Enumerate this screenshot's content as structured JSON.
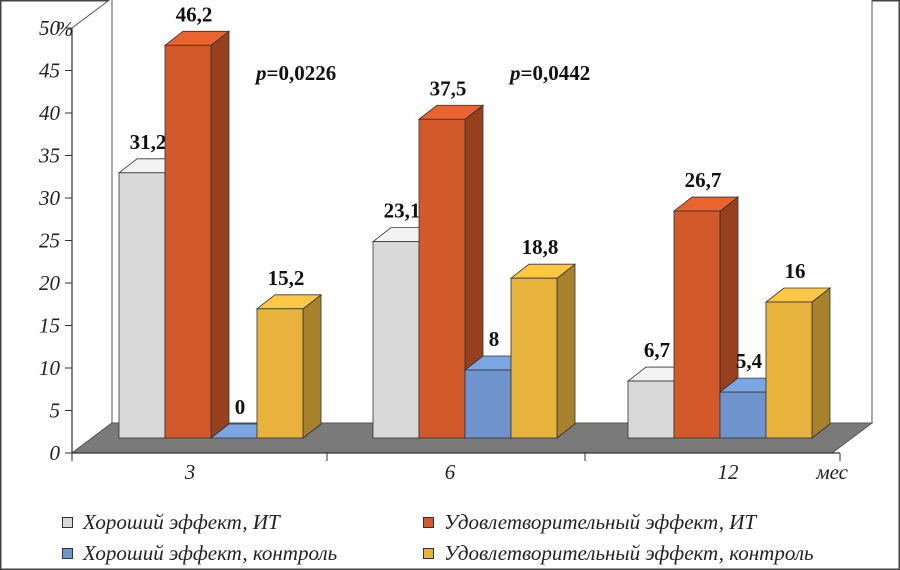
{
  "chart_data": {
    "type": "bar",
    "title": "",
    "xlabel": "мес",
    "ylabel": "%",
    "ylim": [
      0,
      50
    ],
    "yticks": [
      0,
      5,
      10,
      15,
      20,
      25,
      30,
      35,
      40,
      45,
      50
    ],
    "categories": [
      "3",
      "6",
      "12"
    ],
    "series": [
      {
        "name": "Хороший эффект, ИТ",
        "values": [
          31.2,
          23.1,
          6.7
        ],
        "labels": [
          "31,2",
          "23,1",
          "6,7"
        ],
        "color": "#d9d9d9"
      },
      {
        "name": "Удовлетворительный эффект, ИТ",
        "values": [
          46.2,
          37.5,
          26.7
        ],
        "labels": [
          "46,2",
          "37,5",
          "26,7"
        ],
        "color": "#d2592a"
      },
      {
        "name": "Хороший эффект, контроль",
        "values": [
          0,
          8,
          5.4
        ],
        "labels": [
          "0",
          "8",
          "5,4"
        ],
        "color": "#6f93cc"
      },
      {
        "name": "Удовлетворительный эффект, контроль",
        "values": [
          15.2,
          18.8,
          16
        ],
        "labels": [
          "15,2",
          "18,8",
          "16"
        ],
        "color": "#e8b33d"
      }
    ],
    "annotations": [
      {
        "letter": "p",
        "text": "=0,0226"
      },
      {
        "letter": "p",
        "text": "=0,0442"
      }
    ],
    "grid": false,
    "legend_position": "bottom"
  }
}
